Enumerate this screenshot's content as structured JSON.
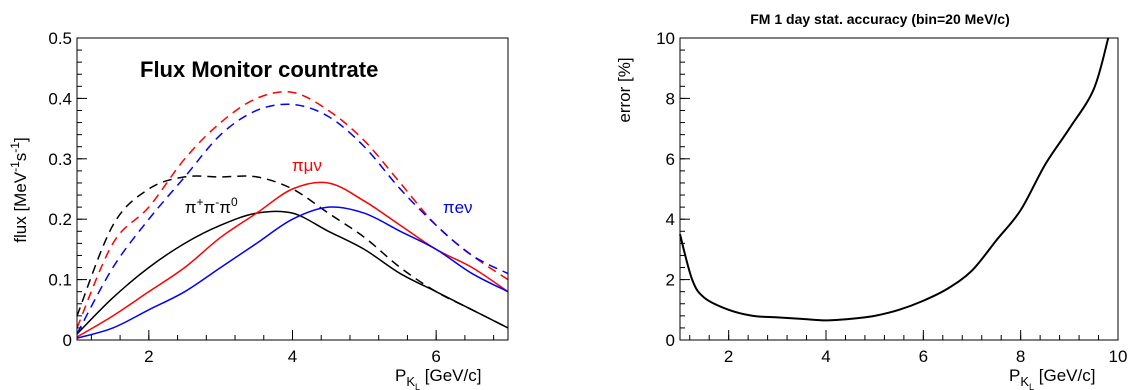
{
  "chart_data": [
    {
      "type": "line",
      "title": "Flux Monitor countrate",
      "xlabel": "P",
      "xlabel_sub": "K",
      "xlabel_subsub": "L",
      "xlabel_unit": " [GeV/c]",
      "ylabel": "flux [MeV",
      "ylabel_sup1": "-1",
      "ylabel_mid": "s",
      "ylabel_sup2": "-1",
      "ylabel_end": "]",
      "xlim": [
        1.0,
        7.0
      ],
      "ylim": [
        0.0,
        0.5
      ],
      "x_ticks": [
        2,
        4,
        6
      ],
      "y_ticks": [
        0,
        0.1,
        0.2,
        0.3,
        0.4,
        0.5
      ],
      "y_tick_labels": [
        "0",
        "0.1",
        "0.2",
        "0.3",
        "0.4",
        "0.5"
      ],
      "grid": false,
      "x": [
        1.0,
        1.5,
        2.0,
        2.5,
        3.0,
        3.5,
        4.0,
        4.5,
        5.0,
        5.5,
        6.0,
        6.5,
        7.0
      ],
      "series": [
        {
          "key": "k3pi_solid",
          "color": "#000000",
          "dashed": false,
          "values": [
            0.01,
            0.07,
            0.12,
            0.16,
            0.19,
            0.21,
            0.21,
            0.18,
            0.15,
            0.11,
            0.08,
            0.05,
            0.02
          ]
        },
        {
          "key": "k3pi_dashed",
          "color": "#000000",
          "dashed": true,
          "values": [
            0.04,
            0.19,
            0.25,
            0.27,
            0.27,
            0.27,
            0.25,
            0.21,
            0.17,
            0.12,
            0.08,
            0.05,
            0.02
          ]
        },
        {
          "key": "kmu3_solid",
          "color": "#ff0000",
          "dashed": false,
          "values": [
            0.005,
            0.04,
            0.08,
            0.12,
            0.17,
            0.21,
            0.25,
            0.26,
            0.23,
            0.19,
            0.15,
            0.12,
            0.08
          ]
        },
        {
          "key": "kmu3_dashed",
          "color": "#ff0000",
          "dashed": true,
          "values": [
            0.02,
            0.16,
            0.22,
            0.3,
            0.36,
            0.4,
            0.41,
            0.38,
            0.33,
            0.26,
            0.19,
            0.14,
            0.1
          ]
        },
        {
          "key": "ke3_solid",
          "color": "#0000ff",
          "dashed": false,
          "values": [
            0.003,
            0.02,
            0.05,
            0.08,
            0.12,
            0.16,
            0.2,
            0.22,
            0.21,
            0.18,
            0.15,
            0.11,
            0.08
          ]
        },
        {
          "key": "ke3_dashed",
          "color": "#0000ff",
          "dashed": true,
          "values": [
            0.01,
            0.12,
            0.2,
            0.27,
            0.34,
            0.38,
            0.39,
            0.37,
            0.32,
            0.25,
            0.19,
            0.14,
            0.11
          ]
        }
      ],
      "labels": [
        {
          "text": "πμν",
          "color": "#ff0000",
          "x": 4.2,
          "y": 0.28
        },
        {
          "text": "πeν",
          "color": "#0000ff",
          "x": 6.3,
          "y": 0.21
        }
      ],
      "label_k3pi": {
        "base1": "π",
        "sup1": "+",
        "base2": "π",
        "sup2": "-",
        "base3": "π",
        "sup3": "0",
        "color": "#000000",
        "x": 2.5,
        "y": 0.21
      }
    },
    {
      "type": "line",
      "title": "FM 1 day stat. accuracy (bin=20 MeV/c)",
      "xlabel": "P",
      "xlabel_sub": "K",
      "xlabel_subsub": "L",
      "xlabel_unit": " [GeV/c]",
      "ylabel": "error [%]",
      "xlim": [
        1.0,
        10.0
      ],
      "ylim": [
        0,
        10
      ],
      "x_ticks": [
        2,
        4,
        6,
        8,
        10
      ],
      "y_ticks": [
        0,
        2,
        4,
        6,
        8,
        10
      ],
      "grid": false,
      "x": [
        1.0,
        1.25,
        1.5,
        2.0,
        2.5,
        3.0,
        3.5,
        4.0,
        4.5,
        5.0,
        5.5,
        6.0,
        6.5,
        7.0,
        7.5,
        8.0,
        8.5,
        9.0,
        9.5,
        9.8
      ],
      "series": [
        {
          "key": "error",
          "color": "#000000",
          "dashed": false,
          "values": [
            3.5,
            2.0,
            1.4,
            1.0,
            0.8,
            0.75,
            0.7,
            0.65,
            0.7,
            0.8,
            1.0,
            1.3,
            1.7,
            2.3,
            3.3,
            4.3,
            5.8,
            7.0,
            8.3,
            10.0
          ]
        }
      ]
    }
  ]
}
